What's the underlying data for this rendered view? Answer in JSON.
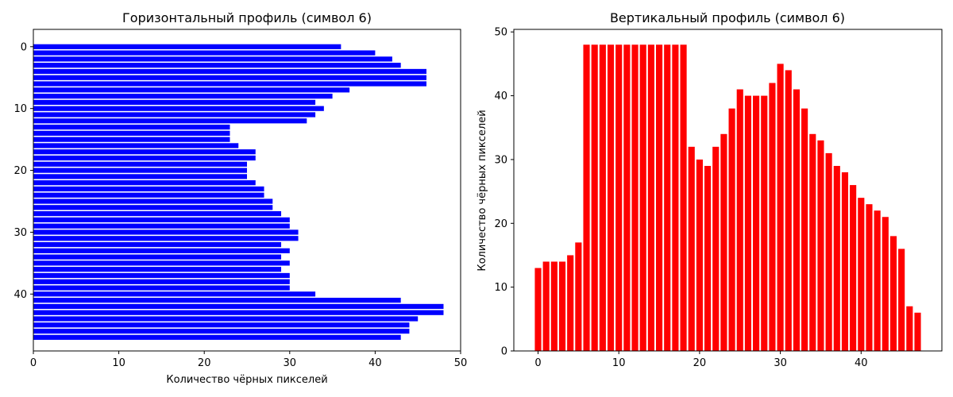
{
  "chart_data": [
    {
      "type": "bar",
      "orientation": "horizontal",
      "title": "Горизонтальный профиль (символ 6)",
      "xlabel": "Количество чёрных пикселей",
      "ylabel": "",
      "color": "#0000ff",
      "xlim": [
        0,
        50
      ],
      "ylim": [
        -2.8,
        49.2
      ],
      "y_inverted": true,
      "xticks": [
        "0",
        "10",
        "20",
        "30",
        "40",
        "50"
      ],
      "yticks": [
        "0",
        "10",
        "20",
        "30",
        "40"
      ],
      "categories": [
        0,
        1,
        2,
        3,
        4,
        5,
        6,
        7,
        8,
        9,
        10,
        11,
        12,
        13,
        14,
        15,
        16,
        17,
        18,
        19,
        20,
        21,
        22,
        23,
        24,
        25,
        26,
        27,
        28,
        29,
        30,
        31,
        32,
        33,
        34,
        35,
        36,
        37,
        38,
        39,
        40,
        41,
        42,
        43,
        44,
        45,
        46,
        47
      ],
      "values": [
        36,
        40,
        42,
        43,
        46,
        46,
        46,
        37,
        35,
        33,
        34,
        33,
        32,
        23,
        23,
        23,
        24,
        26,
        26,
        25,
        25,
        25,
        26,
        27,
        27,
        28,
        28,
        29,
        30,
        30,
        31,
        31,
        29,
        30,
        29,
        30,
        29,
        30,
        30,
        30,
        33,
        43,
        48,
        48,
        45,
        44,
        44,
        43
      ]
    },
    {
      "type": "bar",
      "orientation": "vertical",
      "title": "Вертикальный профиль (символ 6)",
      "xlabel": "",
      "ylabel": "Количество чёрных пикселей",
      "color": "#ff0000",
      "xlim": [
        -3,
        50
      ],
      "ylim": [
        0,
        50.4
      ],
      "xticks": [
        "0",
        "10",
        "20",
        "30",
        "40"
      ],
      "yticks": [
        "0",
        "10",
        "20",
        "30",
        "40",
        "50"
      ],
      "categories": [
        0,
        1,
        2,
        3,
        4,
        5,
        6,
        7,
        8,
        9,
        10,
        11,
        12,
        13,
        14,
        15,
        16,
        17,
        18,
        19,
        20,
        21,
        22,
        23,
        24,
        25,
        26,
        27,
        28,
        29,
        30,
        31,
        32,
        33,
        34,
        35,
        36,
        37,
        38,
        39,
        40,
        41,
        42,
        43,
        44,
        45,
        46,
        47
      ],
      "values": [
        13,
        14,
        14,
        14,
        15,
        17,
        48,
        48,
        48,
        48,
        48,
        48,
        48,
        48,
        48,
        48,
        48,
        48,
        48,
        32,
        30,
        29,
        32,
        34,
        38,
        41,
        40,
        40,
        40,
        42,
        45,
        44,
        41,
        38,
        34,
        33,
        31,
        29,
        28,
        26,
        24,
        23,
        22,
        21,
        18,
        16,
        7,
        6
      ]
    }
  ]
}
